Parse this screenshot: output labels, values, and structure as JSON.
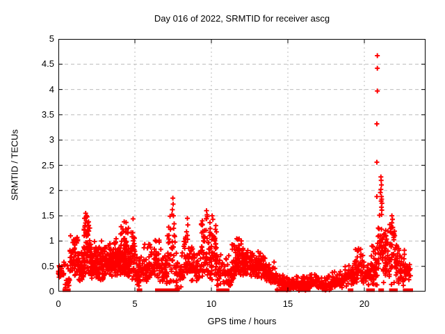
{
  "page": {
    "background": "#ffffff"
  },
  "chart_data": {
    "type": "scatter",
    "title": "Day 016 of 2022, SRMTID for receiver ascg",
    "xlabel": "GPS time / hours",
    "ylabel": "SRMTID / TECUs",
    "xlim": [
      0,
      24
    ],
    "ylim": [
      0,
      5
    ],
    "xticks": [
      0,
      5,
      10,
      15,
      20
    ],
    "yticks": [
      0,
      0.5,
      1,
      1.5,
      2,
      2.5,
      3,
      3.5,
      4,
      4.5,
      5
    ],
    "grid": true,
    "legend_position": "none",
    "marker": "plus",
    "marker_color": "#ff0000",
    "grid_color": "#bbbbbb",
    "axis_color": "#000000",
    "series_name": "SRMTID",
    "seed": 20220116,
    "outlier_points": [
      [
        20.85,
        4.67
      ],
      [
        20.85,
        4.42
      ],
      [
        20.85,
        3.97
      ],
      [
        20.82,
        3.32
      ],
      [
        20.82,
        2.56
      ],
      [
        21.08,
        2.27
      ],
      [
        21.1,
        2.2
      ],
      [
        21.12,
        2.11
      ],
      [
        21.08,
        2.02
      ],
      [
        21.05,
        1.96
      ],
      [
        21.12,
        1.88
      ],
      [
        20.82,
        1.88
      ],
      [
        21.1,
        1.79
      ],
      [
        21.12,
        1.67
      ],
      [
        7.48,
        1.85
      ],
      [
        7.5,
        1.73
      ],
      [
        7.45,
        1.62
      ],
      [
        7.52,
        1.5
      ],
      [
        9.68,
        1.6
      ],
      [
        9.72,
        1.52
      ],
      [
        9.66,
        1.44
      ],
      [
        1.78,
        1.55
      ],
      [
        1.8,
        1.47
      ],
      [
        1.82,
        1.4
      ],
      [
        10.05,
        1.5
      ],
      [
        10.1,
        1.43
      ],
      [
        8.43,
        1.45
      ],
      [
        8.46,
        1.32
      ],
      [
        4.88,
        1.44
      ],
      [
        4.3,
        1.38
      ],
      [
        21.8,
        1.5
      ],
      [
        21.84,
        1.43
      ],
      [
        21.8,
        1.36
      ],
      [
        21.86,
        1.27
      ],
      [
        21.8,
        1.15
      ],
      [
        2.82,
        1.0
      ],
      [
        19.62,
        0.85
      ],
      [
        19.55,
        0.8
      ]
    ],
    "zero_marker_hours": [
      0.45,
      0.62,
      5.3,
      6.5,
      6.7,
      6.95,
      7.15,
      7.5,
      7.7,
      10.5,
      10.85,
      11.0,
      14.35,
      14.55,
      14.75,
      15.0,
      15.9,
      16.05,
      16.3,
      17.4,
      19.1,
      20.3,
      20.5,
      21.1,
      21.8,
      22.0,
      22.7,
      23.0
    ],
    "density_bins": [
      {
        "x0": 0.0,
        "x1": 0.35,
        "ymin": 0.28,
        "ymax": 0.52,
        "count": 30
      },
      {
        "x0": 0.35,
        "x1": 0.75,
        "ymin": 0.05,
        "ymax": 0.6,
        "count": 18
      },
      {
        "x0": 0.75,
        "x1": 1.3,
        "ymin": 0.3,
        "ymax": 1.15,
        "count": 65
      },
      {
        "x0": 1.3,
        "x1": 1.65,
        "ymin": 0.2,
        "ymax": 0.85,
        "count": 45
      },
      {
        "x0": 1.65,
        "x1": 2.05,
        "ymin": 0.3,
        "ymax": 1.5,
        "count": 70
      },
      {
        "x0": 2.05,
        "x1": 2.55,
        "ymin": 0.25,
        "ymax": 1.0,
        "count": 75
      },
      {
        "x0": 2.55,
        "x1": 3.05,
        "ymin": 0.2,
        "ymax": 0.95,
        "count": 65
      },
      {
        "x0": 3.05,
        "x1": 3.55,
        "ymin": 0.3,
        "ymax": 0.95,
        "count": 70
      },
      {
        "x0": 3.55,
        "x1": 4.05,
        "ymin": 0.3,
        "ymax": 1.1,
        "count": 70
      },
      {
        "x0": 4.05,
        "x1": 4.55,
        "ymin": 0.3,
        "ymax": 1.38,
        "count": 80
      },
      {
        "x0": 4.55,
        "x1": 5.0,
        "ymin": 0.2,
        "ymax": 1.3,
        "count": 55
      },
      {
        "x0": 5.0,
        "x1": 5.5,
        "ymin": 0.1,
        "ymax": 0.75,
        "count": 40
      },
      {
        "x0": 5.5,
        "x1": 6.0,
        "ymin": 0.2,
        "ymax": 0.95,
        "count": 45
      },
      {
        "x0": 6.0,
        "x1": 6.6,
        "ymin": 0.2,
        "ymax": 1.1,
        "count": 50
      },
      {
        "x0": 6.6,
        "x1": 7.1,
        "ymin": 0.1,
        "ymax": 0.9,
        "count": 40
      },
      {
        "x0": 7.1,
        "x1": 7.65,
        "ymin": 0.05,
        "ymax": 1.6,
        "count": 40
      },
      {
        "x0": 7.65,
        "x1": 8.2,
        "ymin": 0.05,
        "ymax": 0.85,
        "count": 40
      },
      {
        "x0": 8.2,
        "x1": 8.6,
        "ymin": 0.2,
        "ymax": 1.35,
        "count": 38
      },
      {
        "x0": 8.6,
        "x1": 9.3,
        "ymin": 0.2,
        "ymax": 0.9,
        "count": 55
      },
      {
        "x0": 9.3,
        "x1": 9.85,
        "ymin": 0.2,
        "ymax": 1.5,
        "count": 50
      },
      {
        "x0": 9.85,
        "x1": 10.35,
        "ymin": 0.2,
        "ymax": 1.45,
        "count": 60
      },
      {
        "x0": 10.35,
        "x1": 10.85,
        "ymin": 0.1,
        "ymax": 0.8,
        "count": 35
      },
      {
        "x0": 10.85,
        "x1": 11.35,
        "ymin": 0.05,
        "ymax": 0.75,
        "count": 35
      },
      {
        "x0": 11.35,
        "x1": 12.05,
        "ymin": 0.2,
        "ymax": 1.05,
        "count": 75
      },
      {
        "x0": 12.05,
        "x1": 12.75,
        "ymin": 0.3,
        "ymax": 0.9,
        "count": 80
      },
      {
        "x0": 12.75,
        "x1": 13.55,
        "ymin": 0.25,
        "ymax": 0.8,
        "count": 80
      },
      {
        "x0": 13.55,
        "x1": 14.25,
        "ymin": 0.15,
        "ymax": 0.6,
        "count": 55
      },
      {
        "x0": 14.25,
        "x1": 14.95,
        "ymin": 0.02,
        "ymax": 0.38,
        "count": 45
      },
      {
        "x0": 14.95,
        "x1": 15.55,
        "ymin": 0.02,
        "ymax": 0.25,
        "count": 40
      },
      {
        "x0": 15.55,
        "x1": 16.25,
        "ymin": 0.02,
        "ymax": 0.3,
        "count": 45
      },
      {
        "x0": 16.25,
        "x1": 17.05,
        "ymin": 0.05,
        "ymax": 0.35,
        "count": 50
      },
      {
        "x0": 17.05,
        "x1": 17.85,
        "ymin": 0.02,
        "ymax": 0.35,
        "count": 50
      },
      {
        "x0": 17.85,
        "x1": 18.65,
        "ymin": 0.05,
        "ymax": 0.42,
        "count": 55
      },
      {
        "x0": 18.65,
        "x1": 19.35,
        "ymin": 0.1,
        "ymax": 0.55,
        "count": 50
      },
      {
        "x0": 19.35,
        "x1": 19.95,
        "ymin": 0.15,
        "ymax": 0.85,
        "count": 50
      },
      {
        "x0": 19.95,
        "x1": 20.45,
        "ymin": 0.1,
        "ymax": 0.6,
        "count": 45
      },
      {
        "x0": 20.45,
        "x1": 20.85,
        "ymin": 0.1,
        "ymax": 0.95,
        "count": 40
      },
      {
        "x0": 20.85,
        "x1": 21.15,
        "ymin": 0.3,
        "ymax": 1.9,
        "count": 30
      },
      {
        "x0": 21.15,
        "x1": 21.65,
        "ymin": 0.1,
        "ymax": 1.35,
        "count": 50
      },
      {
        "x0": 21.65,
        "x1": 22.15,
        "ymin": 0.1,
        "ymax": 1.45,
        "count": 45
      },
      {
        "x0": 22.15,
        "x1": 22.65,
        "ymin": 0.1,
        "ymax": 0.9,
        "count": 40
      },
      {
        "x0": 22.65,
        "x1": 23.1,
        "ymin": 0.2,
        "ymax": 0.72,
        "count": 22
      }
    ]
  }
}
